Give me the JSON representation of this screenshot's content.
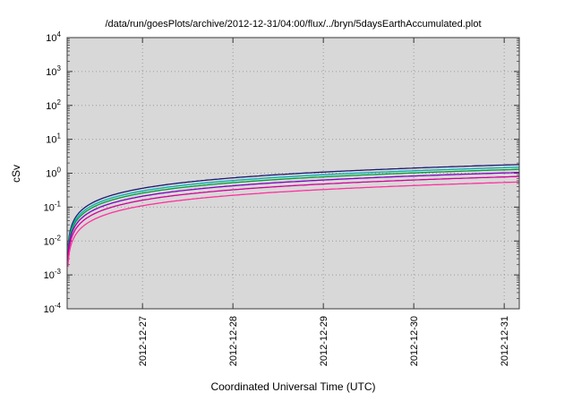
{
  "chart_data": {
    "type": "line",
    "title": "/data/run/goesPlots/archive/2012-12-31/04:00/flux/../bryn/5daysEarthAccumulated.plot",
    "xlabel": "Coordinated Universal Time (UTC)",
    "ylabel": "cSv",
    "y_scale": "log",
    "y_exp_range": [
      -4,
      4
    ],
    "y_ticks_exponents": [
      4,
      3,
      2,
      1,
      0,
      -1,
      -2,
      -3,
      -4
    ],
    "x_range_hours": [
      0,
      120
    ],
    "x_ticks": [
      {
        "label": "2012-12-27",
        "hour": 20
      },
      {
        "label": "2012-12-28",
        "hour": 44
      },
      {
        "label": "2012-12-29",
        "hour": 68
      },
      {
        "label": "2012-12-30",
        "hour": 92
      },
      {
        "label": "2012-12-31",
        "hour": 116
      }
    ],
    "grid": true,
    "legend": "none",
    "growth_exponent": 0.9,
    "t_start_hours": 0.2,
    "start_value_approx": 0.002,
    "series": [
      {
        "id": "1",
        "color": "#1b1b74",
        "end_value": 1.8
      },
      {
        "id": "2",
        "color": "#00b0b0",
        "end_value": 1.5
      },
      {
        "id": "3",
        "color": "#00a038",
        "end_value": 1.3
      },
      {
        "id": "4",
        "color": "#8000c0",
        "end_value": 1.05
      },
      {
        "id": "5",
        "color": "#d4009a",
        "end_value": 0.8
      },
      {
        "id": "6",
        "color": "#ff30a0",
        "end_value": 0.55
      }
    ],
    "colors": {
      "page_bg": "#ffffff",
      "plot_bg": "#d8d8d8",
      "grid": "#9a9a9a",
      "axis": "#383838",
      "text": "#000000"
    }
  }
}
